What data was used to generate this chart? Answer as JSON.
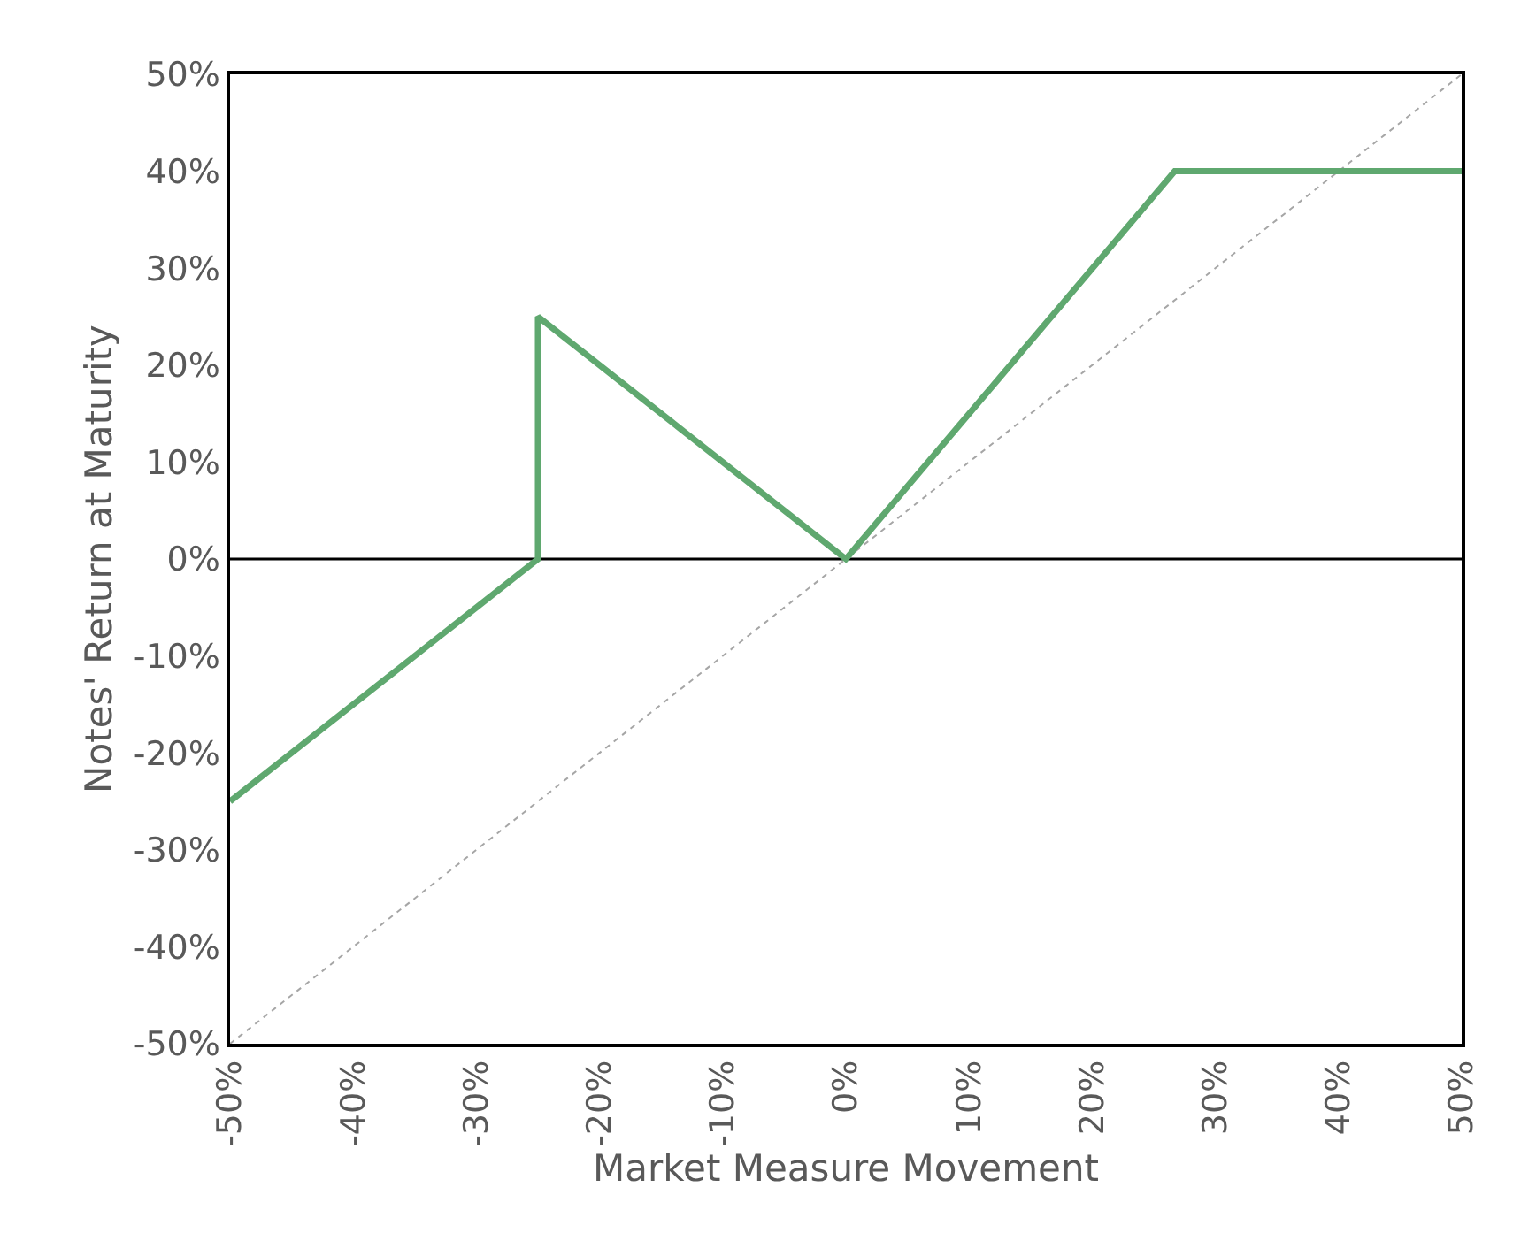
{
  "chart_data": {
    "type": "line",
    "xlabel": "Market Measure Movement",
    "ylabel": "Notes' Return at Maturity",
    "xlim": [
      -50,
      50
    ],
    "ylim": [
      -50,
      50
    ],
    "xticks": [
      {
        "value": -50,
        "label": "-50%"
      },
      {
        "value": -40,
        "label": "-40%"
      },
      {
        "value": -30,
        "label": "-30%"
      },
      {
        "value": -20,
        "label": "-20%"
      },
      {
        "value": -10,
        "label": "-10%"
      },
      {
        "value": 0,
        "label": "0%"
      },
      {
        "value": 10,
        "label": "10%"
      },
      {
        "value": 20,
        "label": "20%"
      },
      {
        "value": 30,
        "label": "30%"
      },
      {
        "value": 40,
        "label": "40%"
      },
      {
        "value": 50,
        "label": "50%"
      }
    ],
    "yticks": [
      {
        "value": -50,
        "label": "-50%"
      },
      {
        "value": -40,
        "label": "-40%"
      },
      {
        "value": -30,
        "label": "-30%"
      },
      {
        "value": -20,
        "label": "-20%"
      },
      {
        "value": -10,
        "label": "-10%"
      },
      {
        "value": 0,
        "label": "0%"
      },
      {
        "value": 10,
        "label": "10%"
      },
      {
        "value": 20,
        "label": "20%"
      },
      {
        "value": 30,
        "label": "30%"
      },
      {
        "value": 40,
        "label": "40%"
      },
      {
        "value": 50,
        "label": "50%"
      }
    ],
    "series": [
      {
        "color": "#a6a6a6",
        "line_style": "dotted",
        "x": [
          -50,
          50
        ],
        "values": [
          -50,
          50
        ]
      },
      {
        "color": "#5fa86f",
        "line_style": "solid",
        "x": [
          -50,
          -25,
          -25,
          0,
          26.7,
          50
        ],
        "values": [
          -25,
          0,
          25,
          0,
          40,
          40
        ]
      }
    ],
    "ref_lines": [
      {
        "axis": "y",
        "value": 0,
        "color": "#000000"
      }
    ],
    "grid": false,
    "marker": "none"
  }
}
